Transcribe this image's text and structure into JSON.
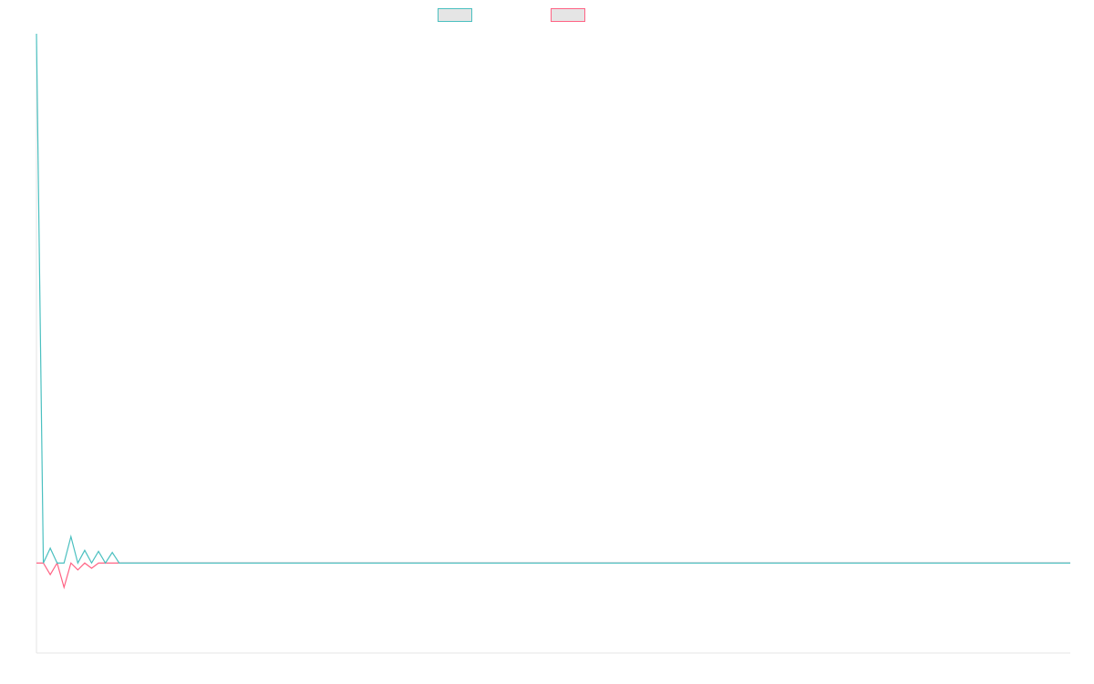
{
  "chart_data": {
    "type": "line",
    "title": "",
    "xlabel": "",
    "ylabel": "",
    "grid": false,
    "legend_position": "top-center",
    "x": [
      0,
      1,
      2,
      3,
      4,
      5,
      6,
      7,
      8,
      9,
      10,
      11,
      12,
      13,
      14,
      15,
      16,
      17,
      18,
      19,
      20,
      21,
      22,
      23,
      24,
      25,
      26,
      27,
      28,
      29,
      30,
      31,
      32,
      33,
      34,
      35,
      36,
      37,
      38,
      39,
      40,
      41,
      42,
      43,
      44,
      45,
      46,
      47,
      48,
      49,
      50,
      51,
      52,
      53,
      54,
      55,
      56,
      57,
      58,
      59,
      60,
      61,
      62,
      63,
      64,
      65,
      66,
      67,
      68,
      69,
      70,
      71,
      72,
      73,
      74,
      75,
      76,
      77,
      78,
      79,
      80,
      81,
      82,
      83,
      84,
      85,
      86,
      87,
      88,
      89,
      90,
      91,
      92,
      93,
      94,
      95,
      96,
      97,
      98,
      99,
      100,
      101,
      102,
      103,
      104,
      105,
      106,
      107,
      108,
      109,
      110,
      111,
      112,
      113,
      114,
      115,
      116,
      117,
      118,
      119,
      120,
      121,
      122,
      123,
      124,
      125,
      126,
      127,
      128,
      129,
      130,
      131,
      132,
      133,
      134,
      135,
      136,
      137,
      138,
      139,
      140,
      141,
      142,
      143,
      144,
      145,
      146,
      147,
      148,
      149,
      150
    ],
    "ylim": [
      -17,
      100
    ],
    "series": [
      {
        "name": "",
        "color": "#4bc0c0",
        "values": [
          100,
          0,
          2.8,
          0,
          0,
          5,
          0,
          2.4,
          0,
          2.2,
          0,
          2,
          0,
          0,
          0,
          0,
          0,
          0,
          0,
          0,
          0,
          0,
          0,
          0,
          0,
          0,
          0,
          0,
          0,
          0,
          0,
          0,
          0,
          0,
          0,
          0,
          0,
          0,
          0,
          0,
          0,
          0,
          0,
          0,
          0,
          0,
          0,
          0,
          0,
          0,
          0,
          0,
          0,
          0,
          0,
          0,
          0,
          0,
          0,
          0,
          0,
          0,
          0,
          0,
          0,
          0,
          0,
          0,
          0,
          0,
          0,
          0,
          0,
          0,
          0,
          0,
          0,
          0,
          0,
          0,
          0,
          0,
          0,
          0,
          0,
          0,
          0,
          0,
          0,
          0,
          0,
          0,
          0,
          0,
          0,
          0,
          0,
          0,
          0,
          0,
          0,
          0,
          0,
          0,
          0,
          0,
          0,
          0,
          0,
          0,
          0,
          0,
          0,
          0,
          0,
          0,
          0,
          0,
          0,
          0,
          0,
          0,
          0,
          0,
          0,
          0,
          0,
          0,
          0,
          0,
          0,
          0,
          0,
          0,
          0,
          0,
          0,
          0,
          0,
          0,
          0,
          0,
          0,
          0,
          0,
          0,
          0,
          0,
          0,
          0,
          0
        ]
      },
      {
        "name": "",
        "color": "#ff6384",
        "values": [
          0,
          0,
          -2.2,
          0,
          -4.6,
          0,
          -1.3,
          0,
          -1,
          0,
          0,
          0,
          0,
          0,
          0,
          0,
          0,
          0,
          0,
          0,
          0,
          0,
          0,
          0,
          0,
          0,
          0,
          0,
          0,
          0,
          0,
          0,
          0,
          0,
          0,
          0,
          0,
          0,
          0,
          0,
          0,
          0,
          0,
          0,
          0,
          0,
          0,
          0,
          0,
          0,
          0,
          0,
          0,
          0,
          0,
          0,
          0,
          0,
          0,
          0,
          0,
          0,
          0,
          0,
          0,
          0,
          0,
          0,
          0,
          0,
          0,
          0,
          0,
          0,
          0,
          0,
          0,
          0,
          0,
          0,
          0,
          0,
          0,
          0,
          0,
          0,
          0,
          0,
          0,
          0,
          0,
          0,
          0,
          0,
          0,
          0,
          0,
          0,
          0,
          0,
          0,
          0,
          0,
          0,
          0,
          0,
          0,
          0,
          0,
          0,
          0,
          0,
          0,
          0,
          0,
          0,
          0,
          0,
          0,
          0,
          0,
          0,
          0,
          0,
          0,
          0,
          0,
          0,
          0,
          0,
          0,
          0,
          0,
          0,
          0,
          0,
          0,
          0,
          0,
          0,
          0,
          0,
          0,
          0,
          0,
          0,
          0,
          0,
          0,
          0,
          0
        ]
      }
    ]
  }
}
